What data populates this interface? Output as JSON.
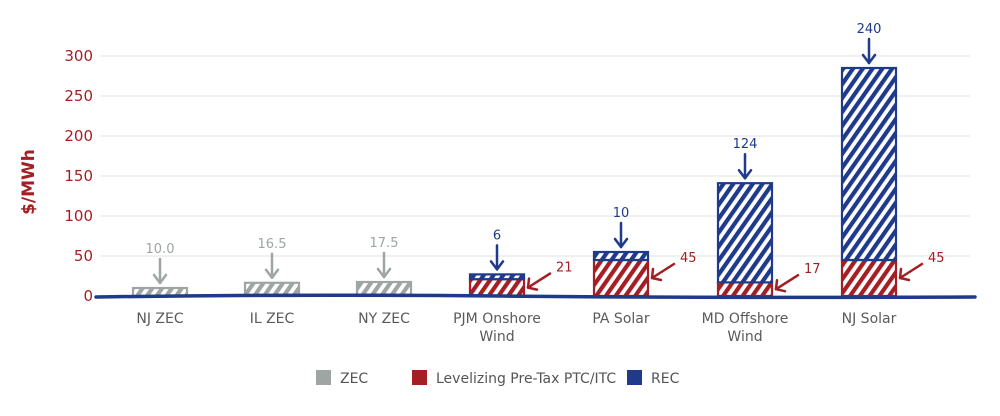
{
  "chart_data": {
    "type": "bar",
    "stacked": true,
    "ylabel": "$/MWh",
    "xlabel": "",
    "title": "",
    "ylim": [
      0,
      300
    ],
    "yticks": [
      0,
      50,
      100,
      150,
      200,
      250,
      300
    ],
    "grid": true,
    "legend_position": "bottom-center",
    "categories": [
      [
        "NJ ZEC"
      ],
      [
        "IL ZEC"
      ],
      [
        "NY ZEC"
      ],
      [
        "PJM Onshore",
        "Wind"
      ],
      [
        "PA Solar"
      ],
      [
        "MD Offshore",
        "Wind"
      ],
      [
        "NJ Solar"
      ]
    ],
    "series": [
      {
        "name": "ZEC",
        "color": "#9ea5a3",
        "values": [
          10.0,
          16.5,
          17.5,
          0,
          0,
          0,
          0
        ]
      },
      {
        "name": "Levelizing Pre-Tax PTC/ITC",
        "color": "#a31f23",
        "values": [
          0,
          0,
          0,
          21,
          45,
          17,
          45
        ]
      },
      {
        "name": "REC",
        "color": "#1f3a8a",
        "values": [
          0,
          0,
          0,
          6,
          10,
          124,
          240
        ]
      }
    ],
    "annotations": [
      {
        "category_index": 0,
        "series": "ZEC",
        "label": "10.0",
        "position": "top"
      },
      {
        "category_index": 1,
        "series": "ZEC",
        "label": "16.5",
        "position": "top"
      },
      {
        "category_index": 2,
        "series": "ZEC",
        "label": "17.5",
        "position": "top"
      },
      {
        "category_index": 3,
        "series": "REC",
        "label": "6",
        "position": "top"
      },
      {
        "category_index": 3,
        "series": "Levelizing Pre-Tax PTC/ITC",
        "label": "21",
        "position": "right"
      },
      {
        "category_index": 4,
        "series": "REC",
        "label": "10",
        "position": "top"
      },
      {
        "category_index": 4,
        "series": "Levelizing Pre-Tax PTC/ITC",
        "label": "45",
        "position": "right"
      },
      {
        "category_index": 5,
        "series": "REC",
        "label": "124",
        "position": "top"
      },
      {
        "category_index": 5,
        "series": "Levelizing Pre-Tax PTC/ITC",
        "label": "17",
        "position": "right"
      },
      {
        "category_index": 6,
        "series": "REC",
        "label": "240",
        "position": "top"
      },
      {
        "category_index": 6,
        "series": "Levelizing Pre-Tax PTC/ITC",
        "label": "45",
        "position": "right"
      }
    ]
  }
}
